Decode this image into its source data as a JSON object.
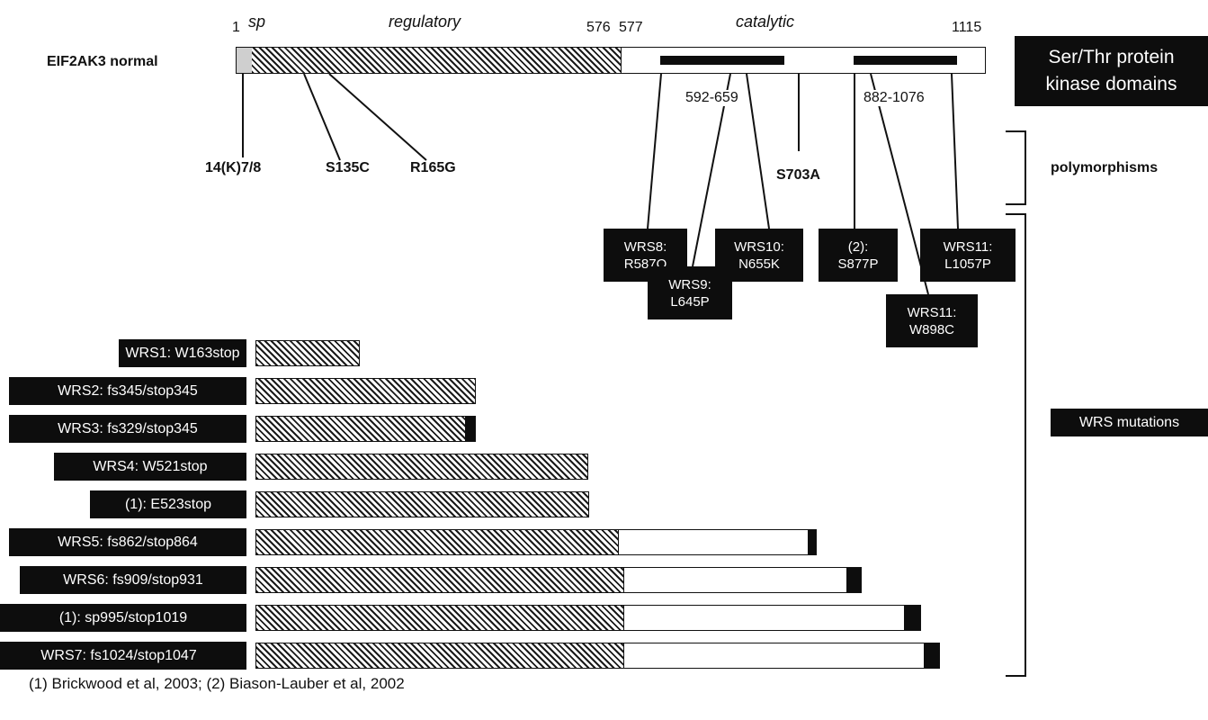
{
  "protein": {
    "name": "EIF2AK3 normal",
    "positions": {
      "start": "1",
      "reg_end": "576",
      "cat_start": "577",
      "end": "1115"
    },
    "regions": {
      "sp": "sp",
      "regulatory": "regulatory",
      "catalytic": "catalytic"
    },
    "domain_ranges": [
      "592-659",
      "882-1076"
    ],
    "domain_label": [
      "Ser/Thr protein",
      "kinase domains"
    ]
  },
  "polymorphisms": {
    "label": "polymorphisms",
    "items": [
      "14(K)7/8",
      "S135C",
      "R165G",
      "S703A"
    ]
  },
  "missense": [
    {
      "line1": "WRS8:",
      "line2": "R587Q"
    },
    {
      "line1": "WRS9:",
      "line2": "L645P"
    },
    {
      "line1": "WRS10:",
      "line2": "N655K"
    },
    {
      "line1": "(2):",
      "line2": "S877P"
    },
    {
      "line1": "WRS11:",
      "line2": "W898C"
    },
    {
      "line1": "WRS11:",
      "line2": "L1057P"
    }
  ],
  "wrs_label": "WRS mutations",
  "truncations": [
    {
      "label": "WRS1: W163stop",
      "end": 163,
      "extra": 0
    },
    {
      "label": "WRS2: fs345/stop345",
      "end": 345,
      "extra": 0
    },
    {
      "label": "WRS3: fs329/stop345",
      "end": 329,
      "extra": 16
    },
    {
      "label": "WRS4: W521stop",
      "end": 521,
      "extra": 0
    },
    {
      "label": "(1): E523stop",
      "end": 523,
      "extra": 0
    },
    {
      "label": "WRS5: fs862/stop864",
      "end": 862,
      "extra": 2
    },
    {
      "label": "WRS6: fs909/stop931",
      "end": 909,
      "extra": 22
    },
    {
      "label": "(1): sp995/stop1019",
      "end": 995,
      "extra": 24
    },
    {
      "label": "WRS7: fs1024/stop1047",
      "end": 1024,
      "extra": 23
    }
  ],
  "footer": "(1) Brickwood et al, 2003; (2) Biason-Lauber et al, 2002"
}
